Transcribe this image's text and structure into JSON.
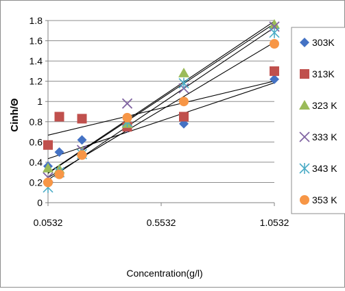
{
  "chart_data": {
    "type": "scatter",
    "title": "",
    "xlabel": "Concentration(g/l)",
    "ylabel": "Cinh/Θ",
    "xlim": [
      0.0532,
      1.0532
    ],
    "ylim": [
      0,
      1.8
    ],
    "x_ticks": [
      "0.0532",
      "0.5532",
      "1.0532"
    ],
    "y_ticks": [
      "0",
      "0.2",
      "0.4",
      "0.6",
      "0.8",
      "1",
      "1.2",
      "1.4",
      "1.6",
      "1.8"
    ],
    "x_tick_values": [
      0.0532,
      0.5532,
      1.0532
    ],
    "y_tick_values": [
      0,
      0.2,
      0.4,
      0.6,
      0.8,
      1.0,
      1.2,
      1.4,
      1.6,
      1.8
    ],
    "grid": "horizontal",
    "trendlines": "linear, black, one per series",
    "legend_position": "right",
    "x": [
      0.0532,
      0.1032,
      0.2032,
      0.4032,
      0.6532,
      1.0532
    ],
    "series": [
      {
        "name": "303K",
        "marker": "diamond",
        "color": "#4472C4",
        "values": [
          0.36,
          0.5,
          0.62,
          0.74,
          0.78,
          1.22
        ]
      },
      {
        "name": "313K",
        "marker": "square",
        "color": "#C0504D",
        "values": [
          0.57,
          0.85,
          0.83,
          0.75,
          0.85,
          1.3
        ]
      },
      {
        "name": "323 K",
        "marker": "triangle",
        "color": "#9BBB59",
        "values": [
          0.34,
          0.33,
          0.5,
          0.78,
          1.28,
          1.76
        ]
      },
      {
        "name": "333 K",
        "marker": "x",
        "color": "#8064A2",
        "values": [
          0.25,
          0.3,
          0.52,
          0.98,
          1.13,
          1.74
        ]
      },
      {
        "name": "343 K",
        "marker": "star",
        "color": "#4BACC6",
        "values": [
          0.15,
          0.3,
          0.48,
          0.8,
          1.18,
          1.68
        ]
      },
      {
        "name": "353 K",
        "marker": "circle",
        "color": "#F79646",
        "values": [
          0.2,
          0.28,
          0.47,
          0.84,
          1.0,
          1.57
        ]
      }
    ]
  }
}
